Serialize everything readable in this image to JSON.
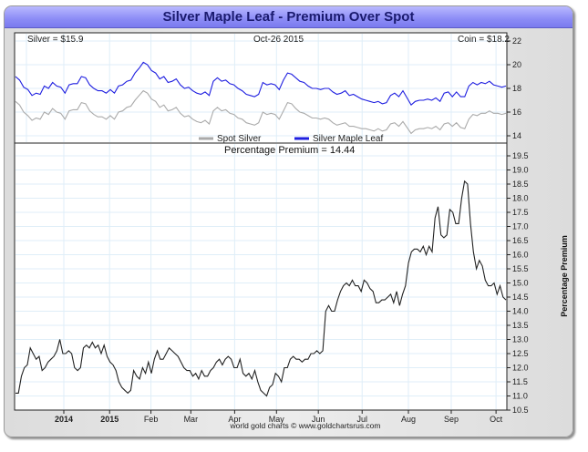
{
  "title": "Silver Maple Leaf - Premium Over Spot",
  "header": {
    "silver_label": "Silver = $15.9",
    "date_label": "Oct-26  2015",
    "coin_label": "Coin = $18.2"
  },
  "legend": {
    "spot": "Spot Silver",
    "coin": "Silver Maple Leaf"
  },
  "premium_label": "Percentage Premium = 14.44",
  "credit": "world gold charts © www.goldchartsrus.com",
  "colors": {
    "spot": "#aaaaaa",
    "coin": "#1f1fe0",
    "premium": "#222222",
    "grid": "#dfeef8",
    "title_bg": "#8c8cf6",
    "title_text": "#1a1a6e"
  },
  "chart_data": [
    {
      "type": "line",
      "title": "Silver Maple Leaf vs Spot Silver (USD)",
      "ylabel": "",
      "ylim": [
        13.5,
        22.5
      ],
      "yticks": [
        "22",
        "20",
        "18",
        "16",
        "14"
      ],
      "ytick_values": [
        22,
        20,
        18,
        16,
        14
      ],
      "xticks": [
        "2014",
        "2015",
        "Feb",
        "Mar",
        "Apr",
        "May",
        "Jun",
        "Jul",
        "Aug",
        "Sep",
        "Oct"
      ],
      "xtick_positions": [
        0.1,
        0.193,
        0.277,
        0.358,
        0.447,
        0.532,
        0.617,
        0.706,
        0.8,
        0.887,
        0.978
      ],
      "legend_position": "bottom-center",
      "series": [
        {
          "name": "Silver Maple Leaf",
          "values": [
            19.0,
            18.7,
            18.1,
            17.9,
            17.4,
            17.6,
            17.5,
            18.2,
            18.0,
            18.5,
            18.2,
            18.1,
            17.6,
            18.3,
            18.4,
            18.4,
            19.0,
            18.9,
            18.3,
            18.0,
            17.8,
            17.8,
            17.6,
            17.9,
            17.6,
            18.2,
            18.3,
            18.6,
            18.7,
            19.3,
            19.7,
            20.2,
            20.0,
            19.5,
            19.3,
            18.8,
            19.0,
            18.5,
            18.6,
            18.8,
            18.3,
            18.0,
            18.1,
            17.8,
            17.6,
            17.5,
            17.7,
            17.4,
            18.6,
            18.9,
            18.6,
            18.7,
            18.4,
            18.3,
            18.0,
            17.8,
            17.5,
            17.4,
            17.3,
            17.5,
            18.5,
            18.3,
            18.4,
            18.3,
            17.9,
            18.7,
            19.3,
            19.2,
            18.9,
            18.6,
            18.5,
            18.2,
            18.0,
            18.0,
            17.9,
            18.0,
            18.0,
            17.7,
            17.5,
            17.6,
            17.8,
            17.4,
            17.5,
            17.3,
            17.1,
            17.0,
            16.9,
            16.8,
            16.9,
            16.7,
            16.8,
            17.4,
            17.6,
            17.3,
            17.8,
            17.2,
            16.6,
            16.9,
            17.0,
            17.0,
            17.1,
            17.0,
            17.2,
            16.9,
            17.6,
            17.7,
            17.3,
            17.7,
            17.3,
            17.3,
            18.2,
            18.5,
            18.3,
            18.5,
            18.4,
            18.6,
            18.3,
            18.2,
            18.1,
            18.2
          ]
        },
        {
          "name": "Spot Silver",
          "values": [
            16.9,
            16.6,
            16.0,
            15.7,
            15.3,
            15.5,
            15.4,
            16.0,
            15.8,
            16.3,
            16.0,
            15.9,
            15.4,
            16.1,
            16.2,
            16.2,
            16.8,
            16.7,
            16.1,
            15.8,
            15.6,
            15.6,
            15.4,
            15.7,
            15.4,
            16.0,
            16.1,
            16.4,
            16.5,
            17.0,
            17.4,
            17.8,
            17.6,
            17.1,
            16.9,
            16.4,
            16.6,
            16.1,
            16.2,
            16.4,
            15.9,
            15.6,
            15.7,
            15.4,
            15.2,
            15.1,
            15.3,
            15.0,
            16.1,
            16.4,
            16.1,
            16.2,
            15.9,
            15.8,
            15.5,
            15.4,
            15.1,
            15.0,
            14.9,
            15.1,
            16.0,
            15.8,
            15.9,
            15.8,
            15.4,
            16.1,
            16.8,
            16.7,
            16.3,
            16.0,
            15.9,
            15.7,
            15.5,
            15.5,
            15.4,
            15.5,
            15.4,
            15.1,
            14.9,
            15.0,
            15.1,
            14.8,
            14.8,
            14.7,
            14.6,
            14.6,
            14.5,
            14.4,
            14.6,
            14.4,
            14.5,
            15.0,
            15.1,
            14.8,
            15.2,
            14.7,
            14.2,
            14.5,
            14.6,
            14.6,
            14.7,
            14.6,
            14.8,
            14.5,
            15.0,
            15.1,
            14.8,
            15.1,
            14.7,
            14.6,
            15.4,
            15.8,
            15.7,
            15.9,
            15.9,
            16.1,
            15.9,
            15.9,
            15.8,
            15.9
          ]
        }
      ]
    },
    {
      "type": "line",
      "title": "Percentage Premium = 14.44",
      "ylabel": "Percentage Premium",
      "ylim": [
        10.5,
        19.9
      ],
      "yticks": [
        "19.5",
        "19.0",
        "18.5",
        "18.0",
        "17.5",
        "17.0",
        "16.5",
        "16.0",
        "15.5",
        "15.0",
        "14.5",
        "14.0",
        "13.5",
        "13.0",
        "12.5",
        "12.0",
        "11.5",
        "11.0",
        "10.5"
      ],
      "ytick_values": [
        19.5,
        19.0,
        18.5,
        18.0,
        17.5,
        17.0,
        16.5,
        16.0,
        15.5,
        15.0,
        14.5,
        14.0,
        13.5,
        13.0,
        12.5,
        12.0,
        11.5,
        11.0,
        10.5
      ],
      "xticks": [
        "2014",
        "2015",
        "Feb",
        "Mar",
        "Apr",
        "May",
        "Jun",
        "Jul",
        "Aug",
        "Sep",
        "Oct"
      ],
      "xtick_positions": [
        0.1,
        0.193,
        0.277,
        0.358,
        0.447,
        0.532,
        0.617,
        0.706,
        0.8,
        0.887,
        0.978
      ],
      "series": [
        {
          "name": "Percentage Premium",
          "values": [
            11.1,
            11.1,
            11.7,
            12.0,
            12.1,
            12.7,
            12.5,
            12.3,
            12.4,
            11.9,
            12.0,
            12.2,
            12.3,
            12.4,
            12.6,
            13.0,
            12.5,
            12.5,
            12.6,
            12.5,
            12.0,
            11.9,
            12.0,
            12.7,
            12.8,
            12.7,
            12.9,
            12.7,
            12.8,
            12.5,
            12.8,
            12.4,
            12.2,
            12.1,
            11.9,
            11.5,
            11.3,
            11.2,
            11.1,
            11.2,
            11.9,
            11.7,
            11.6,
            12.0,
            11.8,
            12.2,
            11.8,
            12.3,
            12.6,
            12.3,
            12.3,
            12.5,
            12.7,
            12.6,
            12.5,
            12.4,
            12.2,
            12.0,
            11.9,
            11.9,
            11.7,
            11.8,
            11.6,
            11.9,
            11.7,
            11.7,
            11.9,
            12.0,
            12.2,
            12.3,
            12.1,
            12.3,
            12.4,
            12.3,
            12.0,
            12.0,
            12.3,
            11.8,
            11.7,
            11.8,
            11.6,
            11.9,
            11.5,
            11.2,
            11.1,
            11.0,
            11.3,
            11.4,
            11.8,
            11.7,
            11.5,
            12.0,
            12.0,
            12.3,
            12.4,
            12.3,
            12.3,
            12.2,
            12.3,
            12.3,
            12.5,
            12.5,
            12.6,
            12.5,
            12.6,
            14.0,
            14.2,
            14.0,
            14.0,
            14.4,
            14.7,
            14.9,
            15.0,
            14.9,
            15.1,
            14.9,
            14.9,
            14.7,
            15.1,
            15.0,
            14.8,
            14.7,
            14.3,
            14.3,
            14.4,
            14.4,
            14.5,
            14.6,
            14.3,
            14.7,
            14.2,
            14.6,
            14.9,
            15.7,
            16.1,
            16.2,
            16.2,
            16.1,
            16.3,
            16.0,
            16.3,
            16.1,
            17.3,
            17.7,
            16.7,
            16.6,
            16.7,
            17.6,
            17.5,
            17.1,
            17.1,
            18.0,
            18.6,
            18.5,
            17.1,
            16.1,
            15.5,
            15.8,
            15.6,
            15.1,
            14.9,
            14.9,
            15.0,
            14.6,
            14.9,
            14.5,
            14.4
          ]
        }
      ]
    }
  ]
}
